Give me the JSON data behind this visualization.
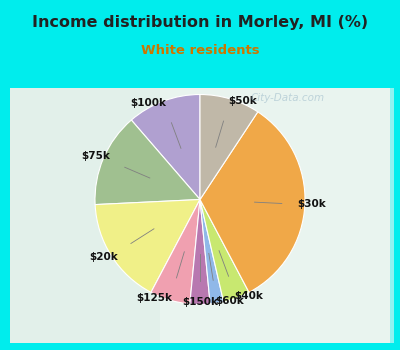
{
  "title": "Income distribution in Morley, MI (%)",
  "subtitle": "White residents",
  "title_color": "#222222",
  "subtitle_color": "#cc7700",
  "background_outer": "#00eded",
  "watermark": "City-Data.com",
  "slices": [
    {
      "label": "$100k",
      "value": 11,
      "color": "#b0a0d0"
    },
    {
      "label": "$75k",
      "value": 14,
      "color": "#a0c090"
    },
    {
      "label": "$20k",
      "value": 16,
      "color": "#f0f088"
    },
    {
      "label": "$125k",
      "value": 6,
      "color": "#f0a0b0"
    },
    {
      "label": "$150k",
      "value": 3,
      "color": "#b878b0"
    },
    {
      "label": "$60k",
      "value": 2,
      "color": "#90b8e8"
    },
    {
      "label": "$40k",
      "value": 4,
      "color": "#c8e870"
    },
    {
      "label": "$30k",
      "value": 32,
      "color": "#f0a848"
    },
    {
      "label": "$50k",
      "value": 9,
      "color": "#c0b8a8"
    }
  ],
  "startangle": 90,
  "label_fontsize": 7.5,
  "inner_bg_left": "#d8ede0",
  "inner_bg_right": "#e8f4f0"
}
